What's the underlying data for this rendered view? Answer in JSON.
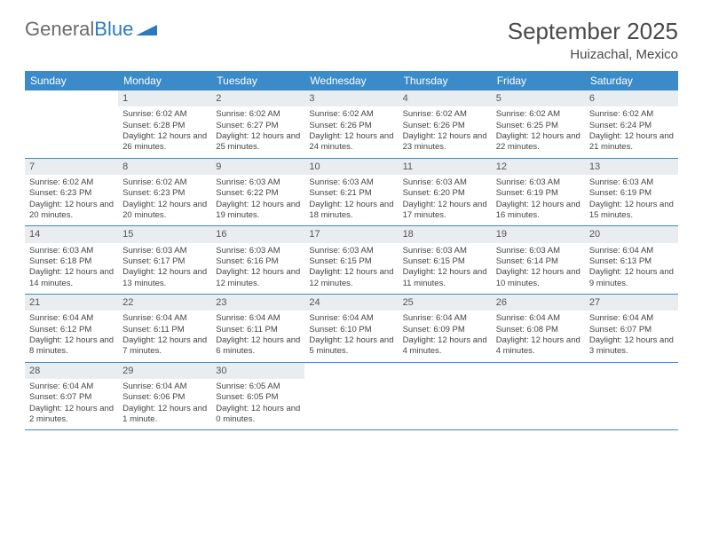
{
  "logo": {
    "text1": "General",
    "text2": "Blue"
  },
  "title": "September 2025",
  "location": "Huizachal, Mexico",
  "colors": {
    "header_bg": "#3b8bc9",
    "header_text": "#ffffff",
    "daynum_bg": "#e9edf0",
    "daynum_text": "#555555",
    "body_text": "#444444",
    "title_text": "#4a4a4a",
    "logo_gray": "#6b6b6b",
    "logo_blue": "#2a7abf",
    "divider": "#3b8bc9"
  },
  "day_names": [
    "Sunday",
    "Monday",
    "Tuesday",
    "Wednesday",
    "Thursday",
    "Friday",
    "Saturday"
  ],
  "weeks": [
    [
      {
        "n": "",
        "sr": "",
        "ss": "",
        "dl": ""
      },
      {
        "n": "1",
        "sr": "Sunrise: 6:02 AM",
        "ss": "Sunset: 6:28 PM",
        "dl": "Daylight: 12 hours and 26 minutes."
      },
      {
        "n": "2",
        "sr": "Sunrise: 6:02 AM",
        "ss": "Sunset: 6:27 PM",
        "dl": "Daylight: 12 hours and 25 minutes."
      },
      {
        "n": "3",
        "sr": "Sunrise: 6:02 AM",
        "ss": "Sunset: 6:26 PM",
        "dl": "Daylight: 12 hours and 24 minutes."
      },
      {
        "n": "4",
        "sr": "Sunrise: 6:02 AM",
        "ss": "Sunset: 6:26 PM",
        "dl": "Daylight: 12 hours and 23 minutes."
      },
      {
        "n": "5",
        "sr": "Sunrise: 6:02 AM",
        "ss": "Sunset: 6:25 PM",
        "dl": "Daylight: 12 hours and 22 minutes."
      },
      {
        "n": "6",
        "sr": "Sunrise: 6:02 AM",
        "ss": "Sunset: 6:24 PM",
        "dl": "Daylight: 12 hours and 21 minutes."
      }
    ],
    [
      {
        "n": "7",
        "sr": "Sunrise: 6:02 AM",
        "ss": "Sunset: 6:23 PM",
        "dl": "Daylight: 12 hours and 20 minutes."
      },
      {
        "n": "8",
        "sr": "Sunrise: 6:02 AM",
        "ss": "Sunset: 6:23 PM",
        "dl": "Daylight: 12 hours and 20 minutes."
      },
      {
        "n": "9",
        "sr": "Sunrise: 6:03 AM",
        "ss": "Sunset: 6:22 PM",
        "dl": "Daylight: 12 hours and 19 minutes."
      },
      {
        "n": "10",
        "sr": "Sunrise: 6:03 AM",
        "ss": "Sunset: 6:21 PM",
        "dl": "Daylight: 12 hours and 18 minutes."
      },
      {
        "n": "11",
        "sr": "Sunrise: 6:03 AM",
        "ss": "Sunset: 6:20 PM",
        "dl": "Daylight: 12 hours and 17 minutes."
      },
      {
        "n": "12",
        "sr": "Sunrise: 6:03 AM",
        "ss": "Sunset: 6:19 PM",
        "dl": "Daylight: 12 hours and 16 minutes."
      },
      {
        "n": "13",
        "sr": "Sunrise: 6:03 AM",
        "ss": "Sunset: 6:19 PM",
        "dl": "Daylight: 12 hours and 15 minutes."
      }
    ],
    [
      {
        "n": "14",
        "sr": "Sunrise: 6:03 AM",
        "ss": "Sunset: 6:18 PM",
        "dl": "Daylight: 12 hours and 14 minutes."
      },
      {
        "n": "15",
        "sr": "Sunrise: 6:03 AM",
        "ss": "Sunset: 6:17 PM",
        "dl": "Daylight: 12 hours and 13 minutes."
      },
      {
        "n": "16",
        "sr": "Sunrise: 6:03 AM",
        "ss": "Sunset: 6:16 PM",
        "dl": "Daylight: 12 hours and 12 minutes."
      },
      {
        "n": "17",
        "sr": "Sunrise: 6:03 AM",
        "ss": "Sunset: 6:15 PM",
        "dl": "Daylight: 12 hours and 12 minutes."
      },
      {
        "n": "18",
        "sr": "Sunrise: 6:03 AM",
        "ss": "Sunset: 6:15 PM",
        "dl": "Daylight: 12 hours and 11 minutes."
      },
      {
        "n": "19",
        "sr": "Sunrise: 6:03 AM",
        "ss": "Sunset: 6:14 PM",
        "dl": "Daylight: 12 hours and 10 minutes."
      },
      {
        "n": "20",
        "sr": "Sunrise: 6:04 AM",
        "ss": "Sunset: 6:13 PM",
        "dl": "Daylight: 12 hours and 9 minutes."
      }
    ],
    [
      {
        "n": "21",
        "sr": "Sunrise: 6:04 AM",
        "ss": "Sunset: 6:12 PM",
        "dl": "Daylight: 12 hours and 8 minutes."
      },
      {
        "n": "22",
        "sr": "Sunrise: 6:04 AM",
        "ss": "Sunset: 6:11 PM",
        "dl": "Daylight: 12 hours and 7 minutes."
      },
      {
        "n": "23",
        "sr": "Sunrise: 6:04 AM",
        "ss": "Sunset: 6:11 PM",
        "dl": "Daylight: 12 hours and 6 minutes."
      },
      {
        "n": "24",
        "sr": "Sunrise: 6:04 AM",
        "ss": "Sunset: 6:10 PM",
        "dl": "Daylight: 12 hours and 5 minutes."
      },
      {
        "n": "25",
        "sr": "Sunrise: 6:04 AM",
        "ss": "Sunset: 6:09 PM",
        "dl": "Daylight: 12 hours and 4 minutes."
      },
      {
        "n": "26",
        "sr": "Sunrise: 6:04 AM",
        "ss": "Sunset: 6:08 PM",
        "dl": "Daylight: 12 hours and 4 minutes."
      },
      {
        "n": "27",
        "sr": "Sunrise: 6:04 AM",
        "ss": "Sunset: 6:07 PM",
        "dl": "Daylight: 12 hours and 3 minutes."
      }
    ],
    [
      {
        "n": "28",
        "sr": "Sunrise: 6:04 AM",
        "ss": "Sunset: 6:07 PM",
        "dl": "Daylight: 12 hours and 2 minutes."
      },
      {
        "n": "29",
        "sr": "Sunrise: 6:04 AM",
        "ss": "Sunset: 6:06 PM",
        "dl": "Daylight: 12 hours and 1 minute."
      },
      {
        "n": "30",
        "sr": "Sunrise: 6:05 AM",
        "ss": "Sunset: 6:05 PM",
        "dl": "Daylight: 12 hours and 0 minutes."
      },
      {
        "n": "",
        "sr": "",
        "ss": "",
        "dl": ""
      },
      {
        "n": "",
        "sr": "",
        "ss": "",
        "dl": ""
      },
      {
        "n": "",
        "sr": "",
        "ss": "",
        "dl": ""
      },
      {
        "n": "",
        "sr": "",
        "ss": "",
        "dl": ""
      }
    ]
  ]
}
